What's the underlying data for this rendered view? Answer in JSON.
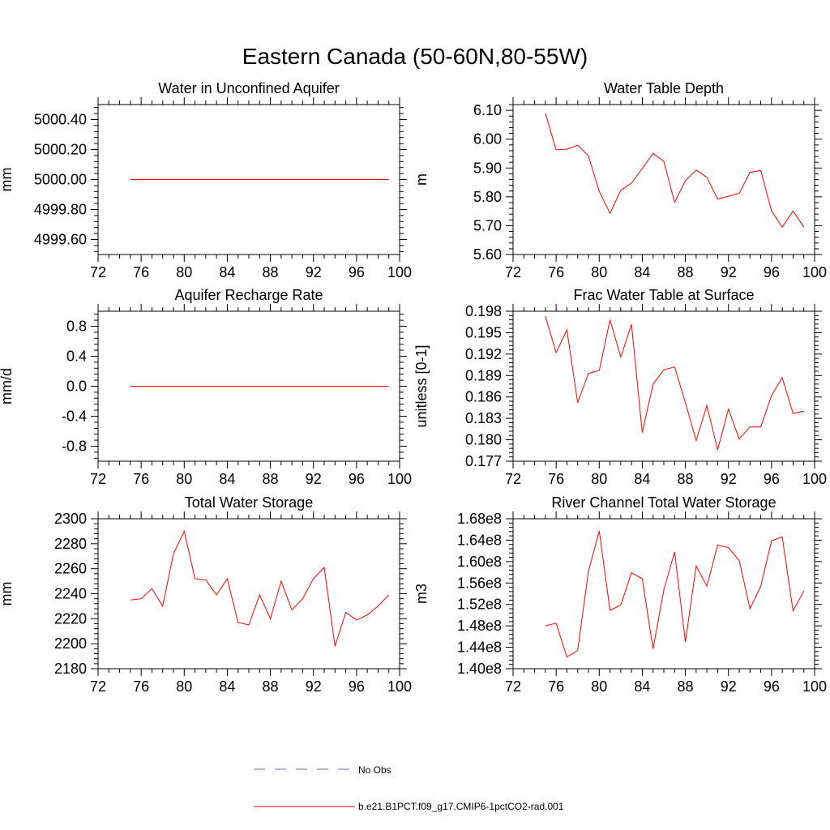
{
  "figure": {
    "title": "Eastern Canada (50-60N,80-55W)",
    "series_color": "#ff0000",
    "obs_color": "#6a6aaa"
  },
  "legend": {
    "obs_label": "No Obs",
    "model_label": "b.e21.B1PCT.f09_g17.CMIP6-1pctCO2-rad.001"
  },
  "chart_data": [
    {
      "type": "line",
      "title": "Water in Unconfined Aquifer",
      "ylabel": "mm",
      "xlim": [
        72,
        100
      ],
      "xticks": [
        72,
        76,
        80,
        84,
        88,
        92,
        96,
        100
      ],
      "ylim": [
        4999.5,
        5000.5
      ],
      "yticks": [
        4999.6,
        4999.8,
        5000.0,
        5000.2,
        5000.4
      ],
      "ytick_labels": [
        "4999.60",
        "4999.80",
        "5000.00",
        "5000.20",
        "5000.40"
      ],
      "x": [
        75,
        76,
        77,
        78,
        79,
        80,
        81,
        82,
        83,
        84,
        85,
        86,
        87,
        88,
        89,
        90,
        91,
        92,
        93,
        94,
        95,
        96,
        97,
        98,
        99
      ],
      "series": [
        {
          "name": "b.e21.B1PCT.f09_g17.CMIP6-1pctCO2-rad.001",
          "values": [
            5000,
            5000,
            5000,
            5000,
            5000,
            5000,
            5000,
            5000,
            5000,
            5000,
            5000,
            5000,
            5000,
            5000,
            5000,
            5000,
            5000,
            5000,
            5000,
            5000,
            5000,
            5000,
            5000,
            5000,
            5000
          ]
        }
      ]
    },
    {
      "type": "line",
      "title": "Water Table Depth",
      "ylabel": "m",
      "xlim": [
        72,
        100
      ],
      "xticks": [
        72,
        76,
        80,
        84,
        88,
        92,
        96,
        100
      ],
      "ylim": [
        5.6,
        6.12
      ],
      "yticks": [
        5.6,
        5.7,
        5.8,
        5.9,
        6.0,
        6.1
      ],
      "ytick_labels": [
        "5.60",
        "5.70",
        "5.80",
        "5.90",
        "6.00",
        "6.10"
      ],
      "x": [
        75,
        76,
        77,
        78,
        79,
        80,
        81,
        82,
        83,
        84,
        85,
        86,
        87,
        88,
        89,
        90,
        91,
        92,
        93,
        94,
        95,
        96,
        97,
        98,
        99
      ],
      "series": [
        {
          "name": "b.e21.B1PCT.f09_g17.CMIP6-1pctCO2-rad.001",
          "values": [
            6.09,
            5.963,
            5.965,
            5.979,
            5.942,
            5.819,
            5.743,
            5.822,
            5.848,
            5.898,
            5.951,
            5.923,
            5.781,
            5.856,
            5.893,
            5.868,
            5.792,
            5.802,
            5.812,
            5.885,
            5.891,
            5.751,
            5.695,
            5.751,
            5.695
          ]
        }
      ]
    },
    {
      "type": "line",
      "title": "Aquifer Recharge Rate",
      "ylabel": "mm/d",
      "xlim": [
        72,
        100
      ],
      "xticks": [
        72,
        76,
        80,
        84,
        88,
        92,
        96,
        100
      ],
      "ylim": [
        -1.0,
        1.0
      ],
      "yticks": [
        -0.8,
        -0.4,
        0.0,
        0.4,
        0.8
      ],
      "ytick_labels": [
        "-0.8",
        "-0.4",
        "0.0",
        "0.4",
        "0.8"
      ],
      "x": [
        75,
        76,
        77,
        78,
        79,
        80,
        81,
        82,
        83,
        84,
        85,
        86,
        87,
        88,
        89,
        90,
        91,
        92,
        93,
        94,
        95,
        96,
        97,
        98,
        99
      ],
      "series": [
        {
          "name": "b.e21.B1PCT.f09_g17.CMIP6-1pctCO2-rad.001",
          "values": [
            0,
            0,
            0,
            0,
            0,
            0,
            0,
            0,
            0,
            0,
            0,
            0,
            0,
            0,
            0,
            0,
            0,
            0,
            0,
            0,
            0,
            0,
            0,
            0,
            0
          ]
        }
      ]
    },
    {
      "type": "line",
      "title": "Frac Water Table at Surface",
      "ylabel": "unitless [0-1]",
      "xlim": [
        72,
        100
      ],
      "xticks": [
        72,
        76,
        80,
        84,
        88,
        92,
        96,
        100
      ],
      "ylim": [
        0.177,
        0.198
      ],
      "yticks": [
        0.177,
        0.18,
        0.183,
        0.186,
        0.189,
        0.192,
        0.195,
        0.198
      ],
      "ytick_labels": [
        "0.177",
        "0.180",
        "0.183",
        "0.186",
        "0.189",
        "0.192",
        "0.195",
        "0.198"
      ],
      "x": [
        75,
        76,
        77,
        78,
        79,
        80,
        81,
        82,
        83,
        84,
        85,
        86,
        87,
        88,
        89,
        90,
        91,
        92,
        93,
        94,
        95,
        96,
        97,
        98,
        99
      ],
      "series": [
        {
          "name": "b.e21.B1PCT.f09_g17.CMIP6-1pctCO2-rad.001",
          "values": [
            0.1973,
            0.1922,
            0.1954,
            0.1852,
            0.1893,
            0.1897,
            0.1968,
            0.1916,
            0.1962,
            0.181,
            0.1878,
            0.1898,
            0.1902,
            0.1852,
            0.1799,
            0.1848,
            0.1786,
            0.1843,
            0.1801,
            0.1818,
            0.1818,
            0.1862,
            0.1887,
            0.1837,
            0.184
          ]
        }
      ]
    },
    {
      "type": "line",
      "title": "Total Water Storage",
      "ylabel": "mm",
      "xlim": [
        72,
        100
      ],
      "xticks": [
        72,
        76,
        80,
        84,
        88,
        92,
        96,
        100
      ],
      "ylim": [
        2180,
        2300
      ],
      "yticks": [
        2180,
        2200,
        2220,
        2240,
        2260,
        2280,
        2300
      ],
      "ytick_labels": [
        "2180",
        "2200",
        "2220",
        "2240",
        "2260",
        "2280",
        "2300"
      ],
      "x": [
        75,
        76,
        77,
        78,
        79,
        80,
        81,
        82,
        83,
        84,
        85,
        86,
        87,
        88,
        89,
        90,
        91,
        92,
        93,
        94,
        95,
        96,
        97,
        98,
        99
      ],
      "series": [
        {
          "name": "b.e21.B1PCT.f09_g17.CMIP6-1pctCO2-rad.001",
          "values": [
            2235,
            2236,
            2244,
            2230,
            2272,
            2290,
            2252,
            2251,
            2239,
            2252,
            2217,
            2215,
            2239,
            2220,
            2250,
            2227,
            2236,
            2252,
            2261,
            2198,
            2225,
            2219,
            2223,
            2230,
            2239
          ]
        }
      ]
    },
    {
      "type": "line",
      "title": "River Channel Total Water Storage",
      "ylabel": "m3",
      "xlim": [
        72,
        100
      ],
      "xticks": [
        72,
        76,
        80,
        84,
        88,
        92,
        96,
        100
      ],
      "ylim": [
        140000000,
        168000000
      ],
      "yticks": [
        140000000,
        144000000,
        148000000,
        152000000,
        156000000,
        160000000,
        164000000,
        168000000
      ],
      "ytick_labels": [
        "1.40e8",
        "1.44e8",
        "1.48e8",
        "1.52e8",
        "1.56e8",
        "1.60e8",
        "1.64e8",
        "1.68e8"
      ],
      "x": [
        75,
        76,
        77,
        78,
        79,
        80,
        81,
        82,
        83,
        84,
        85,
        86,
        87,
        88,
        89,
        90,
        91,
        92,
        93,
        94,
        95,
        96,
        97,
        98,
        99
      ],
      "series": [
        {
          "name": "b.e21.B1PCT.f09_g17.CMIP6-1pctCO2-rad.001",
          "values": [
            148000000,
            148500000,
            142200000,
            143400000,
            158200000,
            165700000,
            150900000,
            151900000,
            157900000,
            156800000,
            143700000,
            154700000,
            161800000,
            145000000,
            159200000,
            155400000,
            163100000,
            162600000,
            160200000,
            151200000,
            155400000,
            163900000,
            164600000,
            150800000,
            154500000
          ]
        }
      ]
    }
  ]
}
